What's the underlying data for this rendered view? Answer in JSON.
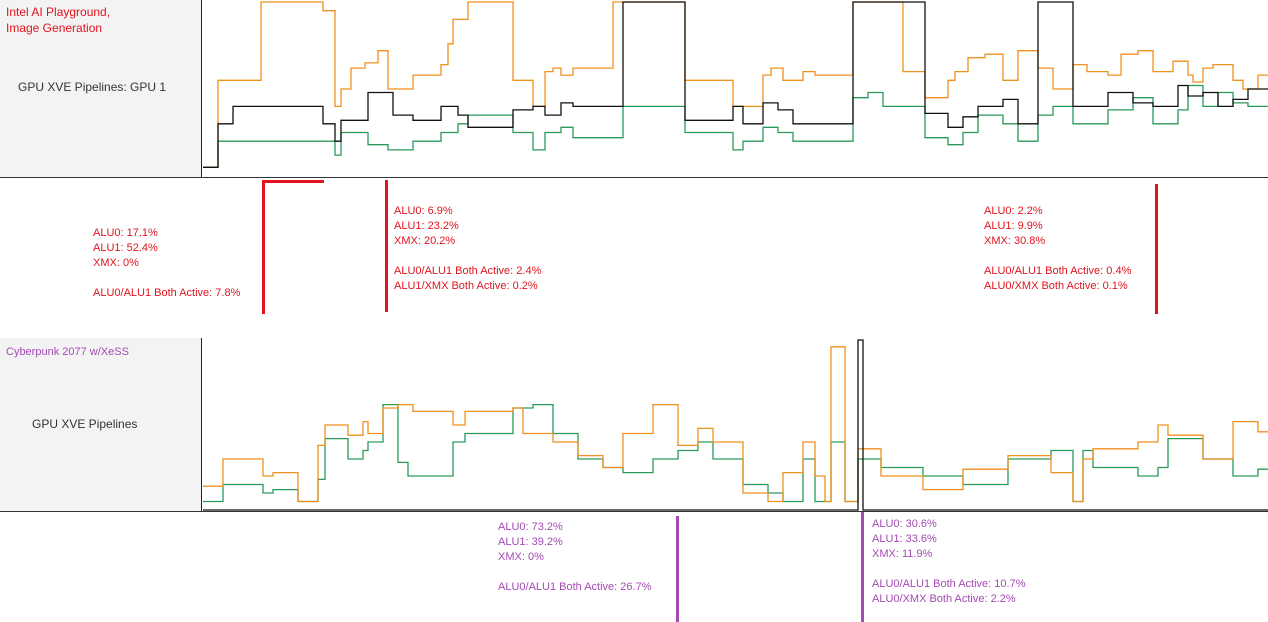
{
  "colors": {
    "accent_red": "#e0141e",
    "accent_purple": "#a44ab4",
    "series_orange": "#f0901e",
    "series_green": "#2a9a5a",
    "series_black": "#111111"
  },
  "top_panel": {
    "app_title": "Intel AI Playground,\nImage Generation",
    "track_name": "GPU XVE Pipelines: GPU 1",
    "annotations": [
      {
        "lines": [
          "ALU0: 17.1%",
          "ALU1: 52.4%",
          "XMX: 0%",
          "",
          "ALU0/ALU1 Both Active: 7.8%"
        ]
      },
      {
        "lines": [
          "ALU0: 6.9%",
          "ALU1: 23.2%",
          "XMX: 20.2%",
          "",
          "ALU0/ALU1 Both Active: 2.4%",
          "ALU1/XMX Both Active: 0.2%"
        ]
      },
      {
        "lines": [
          "ALU0: 2.2%",
          "ALU1: 9.9%",
          "XMX: 30.8%",
          "",
          "ALU0/ALU1 Both Active: 0.4%",
          "ALU0/XMX Both Active: 0.1%"
        ]
      }
    ]
  },
  "bottom_panel": {
    "app_title": "Cyberpunk 2077 w/XeSS",
    "track_name": "GPU XVE Pipelines",
    "annotations": [
      {
        "lines": [
          "ALU0: 73.2%",
          "ALU1: 39.2%",
          "XMX: 0%",
          "",
          "ALU0/ALU1 Both Active: 26.7%"
        ]
      },
      {
        "lines": [
          "ALU0: 30.6%",
          "ALU1: 33.6%",
          "XMX: 11.9%",
          "",
          "ALU0/ALU1 Both Active: 10.7%",
          "ALU0/XMX Both Active: 2.2%"
        ]
      }
    ]
  },
  "chart_data": [
    {
      "type": "line",
      "series": [
        {
          "x": [
            0,
            15,
            15,
            58,
            58,
            60,
            60,
            120,
            120,
            132,
            132,
            138,
            138,
            148,
            148,
            162,
            162,
            175,
            175,
            185,
            185,
            210,
            210,
            238,
            238,
            245,
            245,
            250,
            250,
            265,
            265,
            310,
            310,
            330,
            330,
            342,
            342,
            350,
            350,
            358,
            358,
            370,
            370,
            390,
            390,
            410,
            410,
            420,
            420,
            440,
            440,
            482,
            482,
            530,
            530,
            560,
            560,
            568,
            568,
            580,
            580,
            600,
            600,
            612,
            612,
            650,
            650,
            665,
            665,
            680,
            680,
            700,
            700,
            722,
            722,
            745,
            745,
            752,
            752,
            765,
            765,
            782,
            782,
            800,
            800,
            815,
            815,
            835,
            835,
            850,
            850,
            870,
            870,
            884,
            884,
            905,
            905,
            918,
            918,
            935,
            935,
            950,
            950,
            970,
            970,
            985,
            985,
            990,
            990,
            1000,
            1000,
            1010,
            1010,
            1030,
            1030,
            1040,
            1040,
            1055,
            1055,
            1065
          ],
          "y": [
            5,
            5,
            55,
            55,
            100,
            100,
            100,
            100,
            95,
            95,
            40,
            40,
            50,
            50,
            62,
            62,
            65,
            65,
            72,
            72,
            50,
            50,
            58,
            58,
            64,
            64,
            76,
            76,
            90,
            90,
            100,
            100,
            55,
            55,
            40,
            40,
            60,
            60,
            62,
            62,
            58,
            58,
            62,
            62,
            62,
            62,
            100,
            100,
            100,
            100,
            100,
            100,
            55,
            55,
            40,
            40,
            58,
            58,
            62,
            62,
            55,
            55,
            60,
            60,
            58,
            58,
            100,
            100,
            100,
            100,
            100,
            100,
            60,
            60,
            45,
            45,
            55,
            55,
            60,
            60,
            68,
            68,
            70,
            70,
            55,
            55,
            72,
            72,
            62,
            62,
            50,
            50,
            64,
            64,
            60,
            60,
            58,
            58,
            70,
            70,
            72,
            72,
            60,
            60,
            66,
            66,
            58,
            58,
            54,
            54,
            62,
            62,
            64,
            64,
            55,
            55,
            50,
            50,
            58,
            58
          ],
          "name": ""
        },
        {
          "x": [
            0,
            15,
            15,
            30,
            30,
            60,
            60,
            120,
            120,
            132,
            132,
            138,
            138,
            165,
            165,
            185,
            185,
            210,
            210,
            238,
            238,
            255,
            255,
            265,
            265,
            310,
            310,
            330,
            330,
            342,
            342,
            358,
            358,
            370,
            370,
            390,
            390,
            420,
            420,
            440,
            440,
            482,
            482,
            530,
            530,
            540,
            540,
            560,
            560,
            575,
            575,
            590,
            590,
            612,
            612,
            650,
            650,
            665,
            665,
            680,
            680,
            722,
            722,
            745,
            745,
            760,
            760,
            775,
            775,
            800,
            800,
            815,
            815,
            835,
            835,
            850,
            850,
            870,
            870,
            905,
            905,
            930,
            930,
            950,
            950,
            975,
            975,
            985,
            985,
            1000,
            1000,
            1015,
            1015,
            1030,
            1030,
            1045,
            1045,
            1065
          ],
          "y": [
            5,
            5,
            20,
            20,
            20,
            20,
            20,
            20,
            20,
            20,
            12,
            12,
            25,
            25,
            18,
            18,
            15,
            15,
            20,
            20,
            25,
            25,
            30,
            30,
            35,
            35,
            25,
            25,
            15,
            15,
            25,
            25,
            28,
            28,
            22,
            22,
            22,
            22,
            40,
            40,
            40,
            40,
            25,
            25,
            15,
            15,
            20,
            20,
            28,
            28,
            25,
            25,
            20,
            20,
            20,
            20,
            45,
            45,
            48,
            48,
            40,
            40,
            22,
            22,
            18,
            18,
            25,
            25,
            35,
            35,
            30,
            30,
            20,
            20,
            35,
            35,
            40,
            40,
            30,
            30,
            38,
            38,
            45,
            45,
            30,
            30,
            38,
            38,
            52,
            52,
            40,
            40,
            48,
            48,
            42,
            42,
            40,
            40
          ],
          "name": ""
        },
        {
          "x": [
            0,
            15,
            15,
            30,
            30,
            60,
            60,
            120,
            120,
            132,
            132,
            138,
            138,
            165,
            165,
            190,
            190,
            210,
            210,
            238,
            238,
            255,
            255,
            265,
            265,
            310,
            310,
            330,
            330,
            342,
            342,
            358,
            358,
            370,
            370,
            390,
            390,
            420,
            420,
            440,
            440,
            482,
            482,
            530,
            530,
            540,
            540,
            560,
            560,
            575,
            575,
            590,
            590,
            612,
            612,
            650,
            650,
            665,
            665,
            680,
            680,
            722,
            722,
            745,
            745,
            760,
            760,
            775,
            775,
            800,
            800,
            815,
            815,
            835,
            835,
            850,
            850,
            870,
            870,
            905,
            905,
            930,
            930,
            950,
            950,
            975,
            975,
            985,
            985,
            1000,
            1000,
            1015,
            1015,
            1030,
            1030,
            1045,
            1045,
            1065
          ],
          "y": [
            5,
            5,
            30,
            30,
            40,
            40,
            40,
            40,
            30,
            30,
            20,
            20,
            32,
            32,
            48,
            48,
            35,
            35,
            32,
            32,
            40,
            40,
            35,
            35,
            28,
            28,
            38,
            38,
            40,
            40,
            35,
            35,
            42,
            42,
            40,
            40,
            40,
            40,
            100,
            100,
            100,
            100,
            32,
            32,
            40,
            40,
            30,
            30,
            42,
            42,
            38,
            38,
            30,
            30,
            30,
            30,
            100,
            100,
            100,
            100,
            100,
            100,
            36,
            36,
            28,
            28,
            34,
            34,
            40,
            40,
            44,
            44,
            30,
            30,
            100,
            100,
            100,
            100,
            40,
            40,
            48,
            48,
            42,
            42,
            40,
            40,
            52,
            52,
            46,
            46,
            48,
            48,
            40,
            40,
            44,
            44,
            50,
            50
          ],
          "name": ""
        }
      ]
    },
    {
      "type": "line",
      "series": [
        {
          "x": [
            0,
            20,
            20,
            60,
            60,
            70,
            70,
            95,
            95,
            115,
            115,
            122,
            122,
            145,
            145,
            160,
            160,
            165,
            165,
            180,
            180,
            195,
            195,
            205,
            205,
            250,
            250,
            262,
            262,
            310,
            310,
            330,
            330,
            350,
            350,
            375,
            375,
            400,
            400,
            420,
            420,
            450,
            450,
            475,
            475,
            495,
            495,
            510,
            510,
            540,
            540,
            565,
            565,
            580,
            580,
            600,
            600,
            612,
            612,
            622,
            622,
            628,
            628,
            642,
            642,
            655,
            655,
            678,
            678,
            720,
            720,
            760,
            760,
            805,
            805,
            848,
            848,
            870,
            870,
            880,
            880,
            890,
            890,
            935,
            935,
            955,
            955,
            965,
            965,
            1000,
            1000,
            1030,
            1030,
            1055,
            1055,
            1065
          ],
          "y": [
            5,
            5,
            15,
            15,
            10,
            10,
            12,
            12,
            5,
            5,
            18,
            18,
            42,
            42,
            30,
            30,
            35,
            35,
            40,
            40,
            62,
            62,
            28,
            28,
            20,
            20,
            40,
            40,
            45,
            45,
            60,
            60,
            62,
            62,
            45,
            45,
            30,
            30,
            25,
            25,
            22,
            22,
            30,
            30,
            35,
            35,
            40,
            40,
            30,
            30,
            15,
            15,
            10,
            10,
            5,
            5,
            30,
            30,
            5,
            5,
            5,
            5,
            40,
            40,
            5,
            5,
            30,
            30,
            25,
            25,
            20,
            20,
            15,
            15,
            30,
            30,
            35,
            35,
            5,
            5,
            35,
            35,
            25,
            25,
            20,
            20,
            25,
            25,
            42,
            42,
            30,
            30,
            20,
            20,
            24,
            24
          ],
          "name": ""
        },
        {
          "x": [
            0,
            20,
            20,
            60,
            60,
            70,
            70,
            95,
            95,
            115,
            115,
            122,
            122,
            145,
            145,
            160,
            160,
            165,
            165,
            180,
            180,
            195,
            195,
            210,
            210,
            250,
            250,
            262,
            262,
            310,
            310,
            320,
            320,
            350,
            350,
            375,
            375,
            400,
            400,
            420,
            420,
            450,
            450,
            475,
            475,
            495,
            495,
            510,
            510,
            540,
            540,
            565,
            565,
            580,
            580,
            600,
            600,
            612,
            612,
            622,
            622,
            628,
            628,
            642,
            642,
            655,
            655,
            678,
            678,
            720,
            720,
            760,
            760,
            805,
            805,
            848,
            848,
            870,
            870,
            880,
            880,
            890,
            890,
            935,
            935,
            955,
            955,
            965,
            965,
            1000,
            1000,
            1030,
            1030,
            1055,
            1055,
            1065
          ],
          "y": [
            14,
            14,
            30,
            30,
            20,
            20,
            22,
            22,
            5,
            5,
            38,
            38,
            50,
            50,
            44,
            44,
            52,
            52,
            45,
            45,
            60,
            60,
            62,
            62,
            58,
            58,
            50,
            50,
            58,
            58,
            60,
            60,
            45,
            45,
            40,
            40,
            32,
            32,
            25,
            25,
            45,
            45,
            62,
            62,
            38,
            38,
            48,
            48,
            40,
            40,
            10,
            10,
            5,
            5,
            22,
            22,
            40,
            40,
            20,
            20,
            5,
            5,
            96,
            96,
            5,
            5,
            36,
            36,
            20,
            20,
            12,
            12,
            24,
            24,
            32,
            32,
            22,
            22,
            5,
            5,
            30,
            30,
            36,
            36,
            40,
            40,
            50,
            50,
            44,
            44,
            30,
            30,
            52,
            52,
            46,
            46
          ],
          "name": ""
        },
        {
          "x": [
            0,
            620,
            620,
            640,
            640,
            655,
            655,
            660,
            660,
            1065
          ],
          "y": [
            0,
            0,
            0,
            0,
            0,
            0,
            100,
            100,
            0,
            0
          ],
          "name": ""
        }
      ]
    }
  ]
}
